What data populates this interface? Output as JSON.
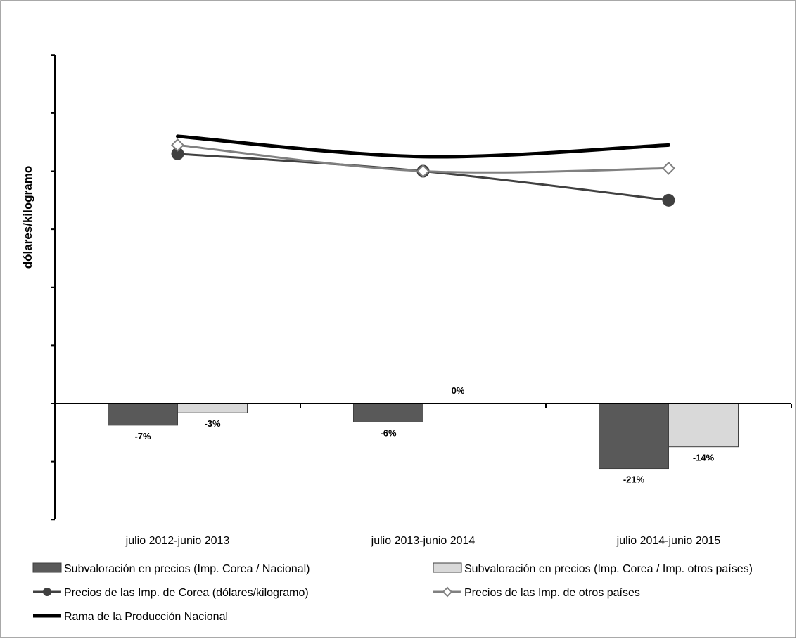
{
  "chart_data": {
    "type": "bar+line",
    "ylabel": "dólares/kilogramo",
    "categories": [
      "julio 2012-junio 2013",
      "julio 2013-junio 2014",
      "julio 2014-junio 2015"
    ],
    "bar_series": [
      {
        "name": "Subvaloración en precios (Imp. Corea / Nacional)",
        "values": [
          -7,
          -6,
          -21
        ],
        "labels": [
          "-7%",
          "-6%",
          "-21%"
        ],
        "color": "#595959"
      },
      {
        "name": "Subvaloración en precios (Imp. Corea / Imp. otros países)",
        "values": [
          -3,
          0,
          -14
        ],
        "labels": [
          "-3%",
          "0%",
          "-14%"
        ],
        "color": "#d9d9d9"
      }
    ],
    "bar_ylim": [
      -50,
      100
    ],
    "line_series": [
      {
        "name": "Precios de las Imp.  de Corea (dólares/kilogramo)",
        "values": [
          4.3,
          4.0,
          3.5
        ],
        "color": "#404040",
        "marker": "circle"
      },
      {
        "name": "Precios de las Imp. de otros países",
        "values": [
          4.45,
          4.0,
          4.05
        ],
        "color": "#808080",
        "marker": "diamond"
      },
      {
        "name": "Rama de la Producción Nacional",
        "values": [
          4.6,
          4.25,
          4.45
        ],
        "color": "#000000",
        "marker": "none"
      }
    ],
    "line_ylim": [
      -2,
      6
    ],
    "legend_position": "bottom",
    "grid": false
  }
}
